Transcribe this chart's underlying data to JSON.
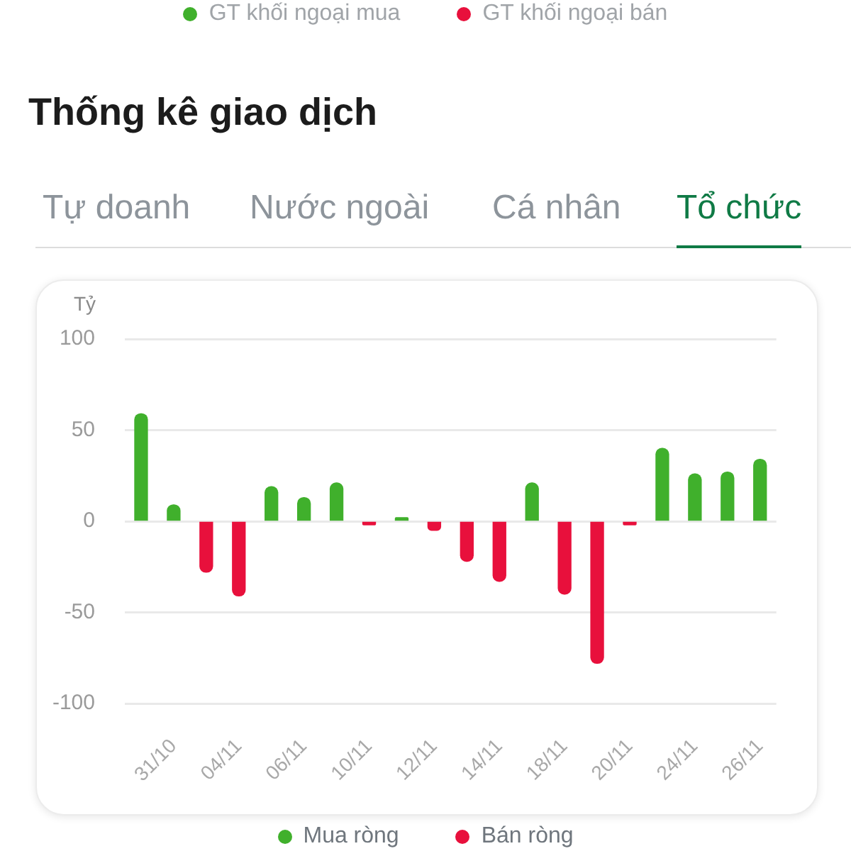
{
  "chart_data": {
    "type": "bar",
    "title": "Thống kê giao dịch",
    "annotations": [
      "GT khối ngoại mua",
      "GT khối ngoại bán",
      "Tự doanh",
      "Nước ngoài",
      "Cá nhân",
      "Tổ chức"
    ],
    "ylabel": "Tỷ",
    "categories": [
      null,
      "31/10",
      null,
      "04/11",
      null,
      "06/11",
      null,
      "10/11",
      null,
      "12/11",
      null,
      "14/11",
      null,
      "18/11",
      null,
      "20/11",
      null,
      "24/11",
      null,
      "26/11"
    ],
    "series": [
      {
        "name": "Mua ròng",
        "color": "#40b02c",
        "values": [
          59,
          9,
          null,
          null,
          19,
          13,
          21,
          null,
          2,
          null,
          null,
          null,
          21,
          null,
          null,
          null,
          40,
          26,
          27,
          34
        ]
      },
      {
        "name": "Bán ròng",
        "color": "#e8103c",
        "values": [
          null,
          null,
          -28,
          -41,
          null,
          null,
          null,
          -2,
          null,
          -5,
          -22,
          -33,
          null,
          -40,
          -78,
          -2,
          null,
          null,
          null,
          null
        ]
      }
    ],
    "ylim": [
      -100,
      100
    ],
    "yticks": [
      -100,
      -50,
      0,
      50,
      100
    ],
    "grid": "y",
    "legend": "bottom"
  }
}
